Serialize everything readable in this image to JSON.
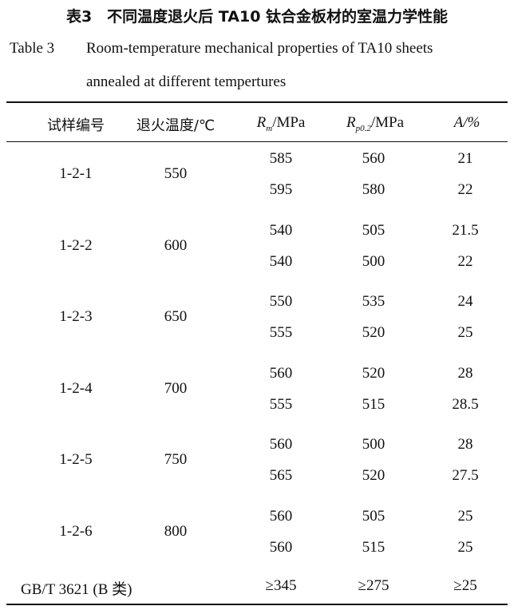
{
  "caption": {
    "cn": "表3　不同温度退火后 TA10 钛合金板材的室温力学性能",
    "en_label": "Table 3",
    "en_line1": "Room-temperature mechanical properties of TA10 sheets",
    "en_line2": "annealed at different tempertures"
  },
  "table": {
    "headers": {
      "sample": "试样编号",
      "temp": "退火温度/℃",
      "rm_sym": "R",
      "rm_sub": "m",
      "rm_unit": "/MPa",
      "rp_sym": "R",
      "rp_sub": "p0.2",
      "rp_unit": "/MPa",
      "a_sym": "A",
      "a_unit": "/%"
    },
    "groups": [
      {
        "sample": "1-2-1",
        "temp": "550",
        "rows": [
          [
            "585",
            "560",
            "21"
          ],
          [
            "595",
            "580",
            "22"
          ]
        ]
      },
      {
        "sample": "1-2-2",
        "temp": "600",
        "rows": [
          [
            "540",
            "505",
            "21.5"
          ],
          [
            "540",
            "500",
            "22"
          ]
        ]
      },
      {
        "sample": "1-2-3",
        "temp": "650",
        "rows": [
          [
            "550",
            "535",
            "24"
          ],
          [
            "555",
            "520",
            "25"
          ]
        ]
      },
      {
        "sample": "1-2-4",
        "temp": "700",
        "rows": [
          [
            "560",
            "520",
            "28"
          ],
          [
            "555",
            "515",
            "28.5"
          ]
        ]
      },
      {
        "sample": "1-2-5",
        "temp": "750",
        "rows": [
          [
            "560",
            "500",
            "28"
          ],
          [
            "565",
            "520",
            "27.5"
          ]
        ]
      },
      {
        "sample": "1-2-6",
        "temp": "800",
        "rows": [
          [
            "560",
            "505",
            "25"
          ],
          [
            "560",
            "515",
            "25"
          ]
        ]
      }
    ],
    "standard": {
      "label": "GB/T 3621 (B 类)",
      "rm": "≥345",
      "rp": "≥275",
      "a": "≥25"
    }
  }
}
